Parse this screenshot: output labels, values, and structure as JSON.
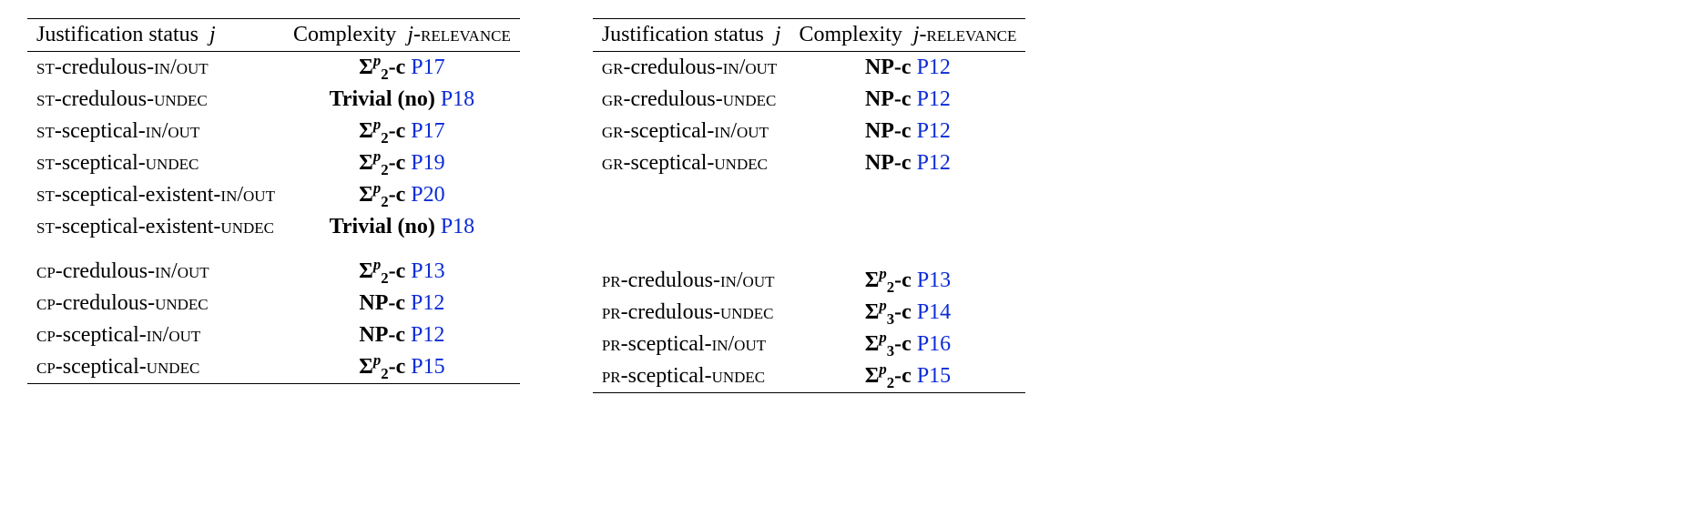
{
  "header": {
    "col1": "Justification status",
    "col1_var": "j",
    "col2_pre": "Complexity",
    "col2_var": "j",
    "col2_post": "-relevance"
  },
  "complexity": {
    "sigma2": {
      "sym": "Σ",
      "sup": "p",
      "sub": "2",
      "suffix": "-c"
    },
    "sigma3": {
      "sym": "Σ",
      "sup": "p",
      "sub": "3",
      "suffix": "-c"
    },
    "np": "NP-c",
    "trivial": "Trivial (no)"
  },
  "refs": {
    "p12": "P12",
    "p13": "P13",
    "p14": "P14",
    "p15": "P15",
    "p16": "P16",
    "p17": "P17",
    "p18": "P18",
    "p19": "P19",
    "p20": "P20"
  },
  "left": {
    "block1": [
      {
        "sem": "st",
        "mode": "-credulous-",
        "lab": "in/out",
        "cx": "sigma2",
        "ref": "p17"
      },
      {
        "sem": "st",
        "mode": "-credulous-",
        "lab": "undec",
        "cx": "trivial",
        "ref": "p18"
      },
      {
        "sem": "st",
        "mode": "-sceptical-",
        "lab": "in/out",
        "cx": "sigma2",
        "ref": "p17"
      },
      {
        "sem": "st",
        "mode": "-sceptical-",
        "lab": "undec",
        "cx": "sigma2",
        "ref": "p19"
      },
      {
        "sem": "st",
        "mode": "-sceptical-existent-",
        "lab": "in/out",
        "cx": "sigma2",
        "ref": "p20"
      },
      {
        "sem": "st",
        "mode": "-sceptical-existent-",
        "lab": "undec",
        "cx": "trivial",
        "ref": "p18"
      }
    ],
    "block2": [
      {
        "sem": "cp",
        "mode": "-credulous-",
        "lab": "in/out",
        "cx": "sigma2",
        "ref": "p13"
      },
      {
        "sem": "cp",
        "mode": "-credulous-",
        "lab": "undec",
        "cx": "np",
        "ref": "p12"
      },
      {
        "sem": "cp",
        "mode": "-sceptical-",
        "lab": "in/out",
        "cx": "np",
        "ref": "p12"
      },
      {
        "sem": "cp",
        "mode": "-sceptical-",
        "lab": "undec",
        "cx": "sigma2",
        "ref": "p15"
      }
    ]
  },
  "right": {
    "block1": [
      {
        "sem": "gr",
        "mode": "-credulous-",
        "lab": "in/out",
        "cx": "np",
        "ref": "p12"
      },
      {
        "sem": "gr",
        "mode": "-credulous-",
        "lab": "undec",
        "cx": "np",
        "ref": "p12"
      },
      {
        "sem": "gr",
        "mode": "-sceptical-",
        "lab": "in/out",
        "cx": "np",
        "ref": "p12"
      },
      {
        "sem": "gr",
        "mode": "-sceptical-",
        "lab": "undec",
        "cx": "np",
        "ref": "p12"
      }
    ],
    "block2": [
      {
        "sem": "pr",
        "mode": "-credulous-",
        "lab": "in/out",
        "cx": "sigma2",
        "ref": "p13"
      },
      {
        "sem": "pr",
        "mode": "-credulous-",
        "lab": "undec",
        "cx": "sigma3",
        "ref": "p14"
      },
      {
        "sem": "pr",
        "mode": "-sceptical-",
        "lab": "in/out",
        "cx": "sigma3",
        "ref": "p16"
      },
      {
        "sem": "pr",
        "mode": "-sceptical-",
        "lab": "undec",
        "cx": "sigma2",
        "ref": "p15"
      }
    ]
  }
}
